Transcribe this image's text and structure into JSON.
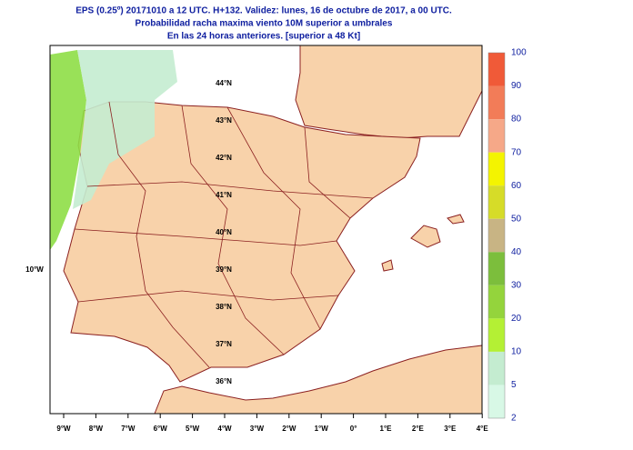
{
  "header": {
    "lines": [
      "EPS (0.25º) 20171010 a 12 UTC.  H+132. Validez: lunes, 16 de octubre de 2017,  a  00 UTC.",
      "Probabilidad racha maxima viento 10M superior a umbrales",
      "En las 24 horas anteriores. [superior a 48 Kt]"
    ]
  },
  "map": {
    "lat_labels": [
      "44°N",
      "43°N",
      "42°N",
      "41°N",
      "40°N",
      "39°N",
      "38°N",
      "37°N",
      "36°N"
    ],
    "lon_labels": [
      "9°W",
      "8°W",
      "7°W",
      "6°W",
      "5°W",
      "4°W",
      "3°W",
      "2°W",
      "1°W",
      "0°",
      "1°E",
      "2°E",
      "3°E",
      "4°E"
    ],
    "side_label": "10°W"
  },
  "colorbar": {
    "labels": [
      100,
      90,
      80,
      70,
      60,
      50,
      40,
      30,
      20,
      10,
      5,
      2
    ],
    "colors": [
      "#f05a38",
      "#f27c58",
      "#f6a888",
      "#f4f400",
      "#d6dc28",
      "#c8b484",
      "#7cbe3c",
      "#94d43c",
      "#b4f034",
      "#c4ecd0",
      "#d8f8e6"
    ]
  }
}
